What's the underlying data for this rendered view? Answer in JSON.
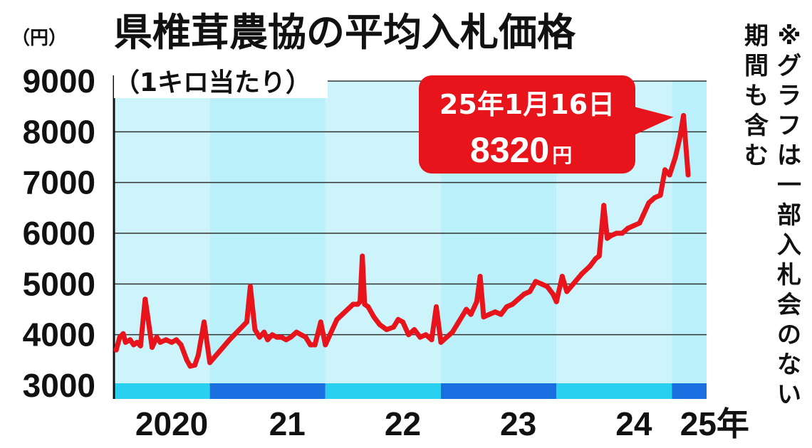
{
  "chart_data": {
    "type": "line",
    "title": "県椎茸農協の平均入札価格",
    "subtitle": "（1キロ当たり）",
    "ylabel": "（円）",
    "ylim": [
      3000,
      9000
    ],
    "yticks": [
      "9000",
      "8000",
      "7000",
      "6000",
      "5000",
      "4000",
      "3000"
    ],
    "xlim": [
      2020.0,
      2025.13
    ],
    "year_labels": [
      {
        "label": "2020",
        "pos": 2020.5
      },
      {
        "label": "21",
        "pos": 2021.5
      },
      {
        "label": "22",
        "pos": 2022.5
      },
      {
        "label": "23",
        "pos": 2023.5
      },
      {
        "label": "24",
        "pos": 2024.5
      },
      {
        "label": "25年",
        "pos": 2025.2
      }
    ],
    "year_bands": [
      {
        "from": 2020.0,
        "to": 2020.83
      },
      {
        "from": 2020.83,
        "to": 2021.83
      },
      {
        "from": 2021.83,
        "to": 2022.83
      },
      {
        "from": 2022.83,
        "to": 2023.83
      },
      {
        "from": 2023.83,
        "to": 2024.83
      },
      {
        "from": 2024.83,
        "to": 2025.13
      }
    ],
    "series": [
      {
        "line_color": "#e8141c",
        "points": [
          [
            2020.02,
            3700
          ],
          [
            2020.05,
            3950
          ],
          [
            2020.08,
            4020
          ],
          [
            2020.1,
            3850
          ],
          [
            2020.14,
            3900
          ],
          [
            2020.17,
            3800
          ],
          [
            2020.2,
            3850
          ],
          [
            2020.23,
            3780
          ],
          [
            2020.27,
            4700
          ],
          [
            2020.29,
            4400
          ],
          [
            2020.33,
            3750
          ],
          [
            2020.37,
            3950
          ],
          [
            2020.4,
            3850
          ],
          [
            2020.45,
            3900
          ],
          [
            2020.5,
            3850
          ],
          [
            2020.54,
            3900
          ],
          [
            2020.58,
            3800
          ],
          [
            2020.63,
            3500
          ],
          [
            2020.66,
            3380
          ],
          [
            2020.7,
            3400
          ],
          [
            2020.73,
            3600
          ],
          [
            2020.78,
            4250
          ],
          [
            2020.83,
            3450
          ],
          [
            2021.0,
            3900
          ],
          [
            2021.15,
            4250
          ],
          [
            2021.18,
            4950
          ],
          [
            2021.22,
            4100
          ],
          [
            2021.26,
            3950
          ],
          [
            2021.3,
            4050
          ],
          [
            2021.33,
            3900
          ],
          [
            2021.37,
            4000
          ],
          [
            2021.41,
            3950
          ],
          [
            2021.45,
            3950
          ],
          [
            2021.49,
            3900
          ],
          [
            2021.53,
            3950
          ],
          [
            2021.58,
            4050
          ],
          [
            2021.62,
            4000
          ],
          [
            2021.66,
            3950
          ],
          [
            2021.7,
            3800
          ],
          [
            2021.74,
            3800
          ],
          [
            2021.79,
            4250
          ],
          [
            2021.83,
            3800
          ],
          [
            2021.93,
            4300
          ],
          [
            2022.07,
            4600
          ],
          [
            2022.11,
            4600
          ],
          [
            2022.13,
            4650
          ],
          [
            2022.15,
            5550
          ],
          [
            2022.17,
            4600
          ],
          [
            2022.2,
            4550
          ],
          [
            2022.25,
            4350
          ],
          [
            2022.3,
            4200
          ],
          [
            2022.36,
            4100
          ],
          [
            2022.42,
            4150
          ],
          [
            2022.46,
            4300
          ],
          [
            2022.5,
            4250
          ],
          [
            2022.55,
            4000
          ],
          [
            2022.6,
            4100
          ],
          [
            2022.65,
            3950
          ],
          [
            2022.7,
            4000
          ],
          [
            2022.75,
            3900
          ],
          [
            2022.79,
            4550
          ],
          [
            2022.83,
            3850
          ],
          [
            2022.93,
            4050
          ],
          [
            2023.05,
            4500
          ],
          [
            2023.09,
            4400
          ],
          [
            2023.14,
            4650
          ],
          [
            2023.17,
            5150
          ],
          [
            2023.2,
            4350
          ],
          [
            2023.25,
            4400
          ],
          [
            2023.3,
            4450
          ],
          [
            2023.35,
            4400
          ],
          [
            2023.4,
            4550
          ],
          [
            2023.45,
            4600
          ],
          [
            2023.5,
            4700
          ],
          [
            2023.55,
            4800
          ],
          [
            2023.6,
            4850
          ],
          [
            2023.65,
            5050
          ],
          [
            2023.7,
            5000
          ],
          [
            2023.75,
            4950
          ],
          [
            2023.8,
            4800
          ],
          [
            2023.83,
            4650
          ],
          [
            2023.88,
            5150
          ],
          [
            2023.92,
            4850
          ],
          [
            2024.05,
            5200
          ],
          [
            2024.12,
            5350
          ],
          [
            2024.17,
            5500
          ],
          [
            2024.2,
            5550
          ],
          [
            2024.24,
            6550
          ],
          [
            2024.27,
            5900
          ],
          [
            2024.3,
            5950
          ],
          [
            2024.35,
            6000
          ],
          [
            2024.4,
            6000
          ],
          [
            2024.45,
            6100
          ],
          [
            2024.5,
            6150
          ],
          [
            2024.55,
            6200
          ],
          [
            2024.58,
            6350
          ],
          [
            2024.63,
            6600
          ],
          [
            2024.68,
            6700
          ],
          [
            2024.73,
            6750
          ],
          [
            2024.77,
            7250
          ],
          [
            2024.81,
            7150
          ],
          [
            2024.86,
            7500
          ],
          [
            2024.9,
            7900
          ],
          [
            2024.93,
            8320
          ],
          [
            2024.97,
            7150
          ]
        ]
      }
    ],
    "annotation": {
      "date": "25年1月16日",
      "value": "8320",
      "unit": "円",
      "box_color": "#e8141c"
    },
    "note": "※グラフは一部入札会のない期間も含む",
    "band_colors": [
      "#cdf3fb",
      "#b9f0fa"
    ],
    "bar_colors": [
      "#2ad0f0",
      "#1a6fe0"
    ],
    "grid": true
  }
}
